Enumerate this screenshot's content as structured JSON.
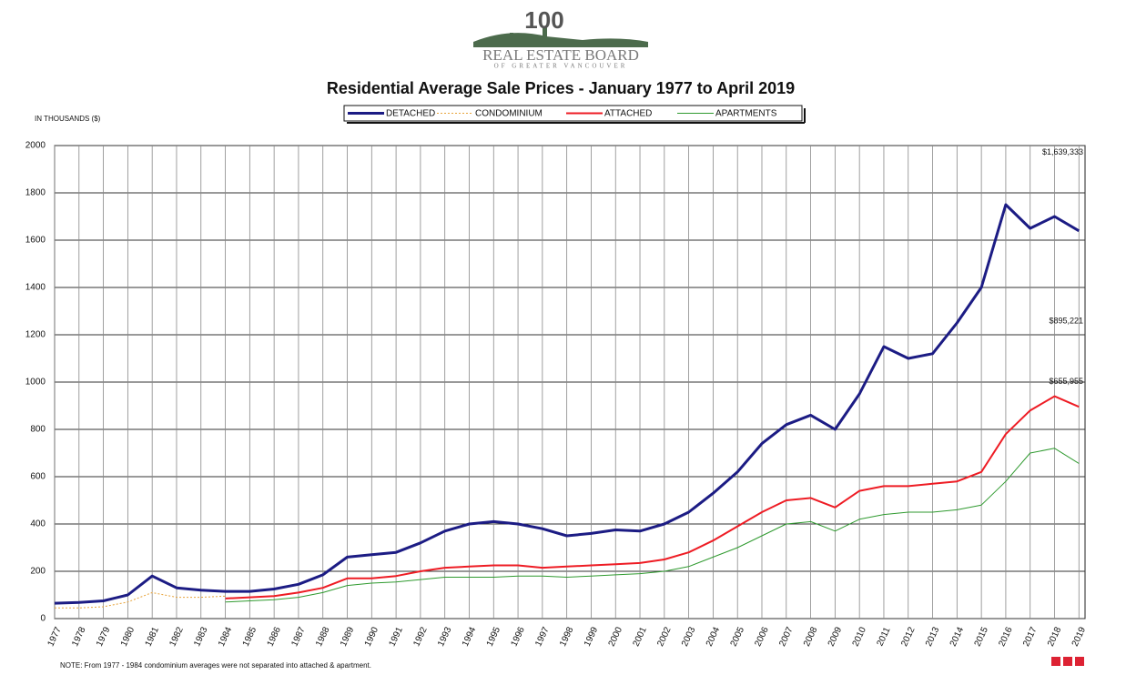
{
  "chart_data": {
    "type": "line",
    "logo": {
      "number": "100",
      "name": "REAL ESTATE BOARD",
      "subname": "OF GREATER VANCOUVER"
    },
    "title": "Residential Average Sale Prices  -  January 1977 to April 2019",
    "y_label": "IN THOUSANDS ($)",
    "note": "NOTE:  From 1977 - 1984 condominium averages were not separated into attached & apartment.",
    "x": [
      1977,
      1978,
      1979,
      1980,
      1981,
      1982,
      1983,
      1984,
      1985,
      1986,
      1987,
      1988,
      1989,
      1990,
      1991,
      1992,
      1993,
      1994,
      1995,
      1996,
      1997,
      1998,
      1999,
      2000,
      2001,
      2002,
      2003,
      2004,
      2005,
      2006,
      2007,
      2008,
      2009,
      2010,
      2011,
      2012,
      2013,
      2014,
      2015,
      2016,
      2017,
      2018,
      2019
    ],
    "series": [
      {
        "name": "DETACHED",
        "color": "#1c1c84",
        "width": 3,
        "dash": false,
        "end_label": "$1,639,333",
        "values": [
          65,
          68,
          75,
          100,
          180,
          130,
          120,
          115,
          115,
          125,
          145,
          185,
          260,
          270,
          280,
          320,
          370,
          400,
          410,
          400,
          380,
          350,
          360,
          375,
          370,
          400,
          450,
          530,
          620,
          740,
          820,
          860,
          800,
          950,
          1150,
          1100,
          1120,
          1250,
          1400,
          1750,
          1650,
          1700,
          1639.333
        ]
      },
      {
        "name": "CONDOMINIUM",
        "color": "#e8a33a",
        "width": 1,
        "dash": true,
        "values": [
          45,
          45,
          50,
          70,
          110,
          90,
          90,
          95,
          null,
          null,
          null,
          null,
          null,
          null,
          null,
          null,
          null,
          null,
          null,
          null,
          null,
          null,
          null,
          null,
          null,
          null,
          null,
          null,
          null,
          null,
          null,
          null,
          null,
          null,
          null,
          null,
          null,
          null,
          null,
          null,
          null,
          null,
          null
        ]
      },
      {
        "name": "ATTACHED",
        "color": "#ee1c24",
        "width": 2,
        "dash": false,
        "end_label": "$895,221",
        "values": [
          null,
          null,
          null,
          null,
          null,
          null,
          null,
          85,
          90,
          95,
          110,
          130,
          170,
          170,
          180,
          200,
          215,
          220,
          225,
          225,
          215,
          220,
          225,
          230,
          235,
          250,
          280,
          330,
          390,
          450,
          500,
          510,
          470,
          540,
          560,
          560,
          570,
          580,
          620,
          780,
          880,
          940,
          895.221
        ]
      },
      {
        "name": "APARTMENTS",
        "color": "#2f9a2f",
        "width": 1,
        "dash": false,
        "end_label": "$655,955",
        "values": [
          null,
          null,
          null,
          null,
          null,
          null,
          null,
          70,
          75,
          80,
          90,
          110,
          140,
          150,
          155,
          165,
          175,
          175,
          175,
          180,
          180,
          175,
          180,
          185,
          190,
          200,
          220,
          260,
          300,
          350,
          400,
          410,
          370,
          420,
          440,
          450,
          450,
          460,
          480,
          580,
          700,
          720,
          655.955
        ]
      }
    ],
    "xlim": [
      1977,
      2019.25
    ],
    "xticks": [
      1977,
      1978,
      1979,
      1980,
      1981,
      1982,
      1983,
      1984,
      1985,
      1986,
      1987,
      1988,
      1989,
      1990,
      1991,
      1992,
      1993,
      1994,
      1995,
      1996,
      1997,
      1998,
      1999,
      2000,
      2001,
      2002,
      2003,
      2004,
      2005,
      2006,
      2007,
      2008,
      2009,
      2010,
      2011,
      2012,
      2013,
      2014,
      2015,
      2016,
      2017,
      2018,
      2019
    ],
    "ylim": [
      0,
      2000
    ],
    "yticks": [
      0,
      200,
      400,
      600,
      800,
      1000,
      1200,
      1400,
      1600,
      1800,
      2000
    ],
    "grid": true
  }
}
